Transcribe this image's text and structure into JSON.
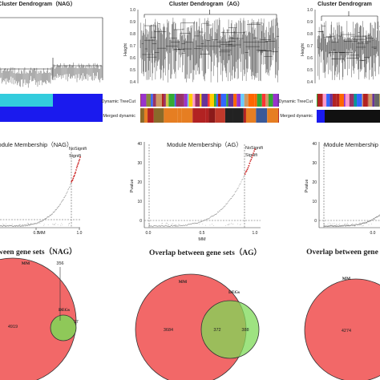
{
  "dendrograms": {
    "nag": {
      "title": "Cluster Dendrogram（NAG）"
    },
    "ag": {
      "title": "Cluster Dendrogram（AG）",
      "ylabel": "Height",
      "yticks": [
        "1.0",
        "0.9",
        "0.8",
        "0.7",
        "0.6",
        "0.5",
        "0.4"
      ]
    },
    "third": {
      "title": "Cluster Dendrogram",
      "ylabel": "Height",
      "yticks": [
        "1.0",
        "0.9",
        "0.8",
        "0.7",
        "0.6",
        "0.5",
        "0.4"
      ]
    },
    "row_labels": {
      "dynamic": "Dynamic TreeCut",
      "merged": "Merged dynamic"
    }
  },
  "membership": {
    "nag": {
      "title": "odule Membership（NAG）",
      "xlabel": "MM",
      "xticks": [
        "0.5",
        "1.0"
      ],
      "legend": [
        "NoSignifi",
        "Signifi"
      ]
    },
    "ag": {
      "title": "Module Membership（AG）",
      "xlabel": "MM",
      "ylabel": "Pvalue",
      "yticks": [
        "40",
        "30",
        "20",
        "10",
        "0"
      ],
      "xticks": [
        "0.0",
        "0.5",
        "1.0"
      ],
      "legend": [
        "NoSignifi",
        "Signifi"
      ]
    },
    "third": {
      "title": "Module Membership",
      "ylabel": "Pvalue",
      "yticks": [
        "40",
        "30",
        "20",
        "10",
        "0"
      ],
      "xticks": [
        "0.0"
      ]
    }
  },
  "venn": {
    "nag": {
      "title": "between gene sets（NAG）",
      "mm_label": "MM",
      "degs_label": "DEGs",
      "mm_only": "4919",
      "overlap": "356",
      "degs_only": "97"
    },
    "ag": {
      "title": "Overlap between gene sets（AG）",
      "mm_label": "MM",
      "degs_label": "DEGs",
      "mm_only": "3684",
      "overlap": "372",
      "degs_only": "388"
    },
    "third": {
      "title": "Overlap between gene s",
      "mm_label": "MM",
      "mm_only": "4274"
    }
  },
  "colors": {
    "venn_red": "#f26868",
    "venn_green": "#7ed957",
    "signif": "#cc2222",
    "nosignif": "#555555",
    "cut_line": "#555555"
  }
}
